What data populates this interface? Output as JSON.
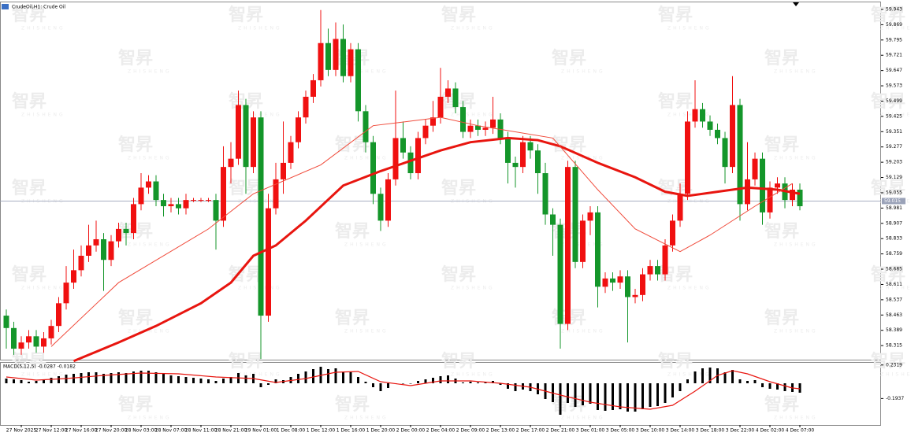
{
  "watermark": {
    "logo": "智昇",
    "sub": "ZHISHENG"
  },
  "chart_data": [
    {
      "type": "candlestick",
      "title": "CrudeOil,H1: Crude Oil",
      "categories": [
        null,
        null,
        "27 Nov 2025",
        null,
        null,
        null,
        "27 Nov 12:00",
        null,
        null,
        null,
        "27 Nov 16:00",
        null,
        null,
        null,
        "27 Nov 20:00",
        null,
        null,
        null,
        "28 Nov 03:00",
        null,
        null,
        null,
        "28 Nov 07:00",
        null,
        null,
        null,
        "28 Nov 11:00",
        null,
        null,
        null,
        "28 Nov 21:00",
        null,
        null,
        null,
        "29 Nov 01:00",
        null,
        null,
        null,
        "1 Dec 08:00",
        null,
        null,
        null,
        "1 Dec 12:00",
        null,
        null,
        null,
        "1 Dec 16:00",
        null,
        null,
        null,
        "1 Dec 20:00",
        null,
        null,
        null,
        "2 Dec 00:00",
        null,
        null,
        null,
        "2 Dec 04:00",
        null,
        null,
        null,
        "2 Dec 09:00",
        null,
        null,
        null,
        "2 Dec 13:00",
        null,
        null,
        null,
        "2 Dec 17:00",
        null,
        null,
        null,
        "2 Dec 21:00",
        null,
        null,
        null,
        "3 Dec 01:00",
        null,
        null,
        null,
        "3 Dec 05:00",
        null,
        null,
        null,
        "3 Dec 10:00",
        null,
        null,
        null,
        "3 Dec 14:00",
        null,
        null,
        null,
        "3 Dec 18:00",
        null,
        null,
        null,
        "3 Dec 22:00",
        null,
        null,
        null,
        "4 Dec 02:00",
        null,
        null,
        null,
        "4 Dec 07:00"
      ],
      "open": [
        58.46,
        58.4,
        58.3,
        58.33,
        58.36,
        58.31,
        58.35,
        58.41,
        58.52,
        58.62,
        58.68,
        58.75,
        58.8,
        58.83,
        58.73,
        58.82,
        58.88,
        58.86,
        59.0,
        59.08,
        59.11,
        59.02,
        58.99,
        59.0,
        58.98,
        59.02,
        59.02,
        59.02,
        59.02,
        58.92,
        59.18,
        59.22,
        59.48,
        59.18,
        59.42,
        58.46,
        58.98,
        59.12,
        59.2,
        59.3,
        59.42,
        59.52,
        59.6,
        59.78,
        59.65,
        59.8,
        59.62,
        59.75,
        59.45,
        59.3,
        59.05,
        58.92,
        59.12,
        59.32,
        59.25,
        59.15,
        59.32,
        59.38,
        59.42,
        59.52,
        59.56,
        59.47,
        59.35,
        59.38,
        59.36,
        59.37,
        59.41,
        59.32,
        59.2,
        59.18,
        59.3,
        59.26,
        59.15,
        58.95,
        58.9,
        58.42,
        59.18,
        58.72,
        58.92,
        58.96,
        58.6,
        58.64,
        58.62,
        58.65,
        58.55,
        58.56,
        58.66,
        58.7,
        58.66,
        58.8,
        58.92,
        59.05,
        59.4,
        59.46,
        59.4,
        59.36,
        59.32,
        59.18,
        59.48,
        59.0,
        59.12,
        59.22,
        58.96,
        59.08,
        59.1,
        59.02,
        59.07
      ],
      "high": [
        58.49,
        58.43,
        58.36,
        58.39,
        58.39,
        58.38,
        58.44,
        58.55,
        58.7,
        58.78,
        58.8,
        58.9,
        58.92,
        58.86,
        58.85,
        58.91,
        58.91,
        59.03,
        59.15,
        59.14,
        59.14,
        59.05,
        59.03,
        59.03,
        59.05,
        59.03,
        59.03,
        59.03,
        59.05,
        59.28,
        59.3,
        59.55,
        59.51,
        59.45,
        59.45,
        59.05,
        59.2,
        59.4,
        59.33,
        59.45,
        59.55,
        59.63,
        59.94,
        59.85,
        59.88,
        59.87,
        59.78,
        59.78,
        59.48,
        59.33,
        59.08,
        59.15,
        59.55,
        59.4,
        59.28,
        59.35,
        59.41,
        59.5,
        59.66,
        59.6,
        59.59,
        59.5,
        59.41,
        59.41,
        59.4,
        59.52,
        59.44,
        59.35,
        59.23,
        59.33,
        59.33,
        59.29,
        59.2,
        58.98,
        58.93,
        59.21,
        59.21,
        58.95,
        58.99,
        58.99,
        58.67,
        58.67,
        58.68,
        58.68,
        58.59,
        58.69,
        58.73,
        58.73,
        58.83,
        58.95,
        59.1,
        59.45,
        59.6,
        59.49,
        59.43,
        59.39,
        59.35,
        59.62,
        59.51,
        59.3,
        59.25,
        59.25,
        59.11,
        59.13,
        59.13,
        59.1,
        59.1
      ],
      "low": [
        58.3,
        58.27,
        58.27,
        58.3,
        58.28,
        58.28,
        58.32,
        58.38,
        58.49,
        58.59,
        58.65,
        58.72,
        58.77,
        58.58,
        58.7,
        58.79,
        58.8,
        58.83,
        58.97,
        59.05,
        58.99,
        58.94,
        58.96,
        58.95,
        58.95,
        59.01,
        59.01,
        59.01,
        58.78,
        58.89,
        59.1,
        59.19,
        59.05,
        59.15,
        58.25,
        58.43,
        58.95,
        59.05,
        59.17,
        59.27,
        59.39,
        59.49,
        59.57,
        59.62,
        59.62,
        59.59,
        59.59,
        59.4,
        59.25,
        59.0,
        58.87,
        58.89,
        59.09,
        59.22,
        59.12,
        59.12,
        59.29,
        59.35,
        59.39,
        59.49,
        59.44,
        59.32,
        59.32,
        59.33,
        59.33,
        59.34,
        59.29,
        59.1,
        59.08,
        59.15,
        59.22,
        59.05,
        58.9,
        58.75,
        58.3,
        58.39,
        58.69,
        58.69,
        58.85,
        58.5,
        58.57,
        58.58,
        58.59,
        58.33,
        58.52,
        58.53,
        58.63,
        58.63,
        58.63,
        58.77,
        58.89,
        59.02,
        59.37,
        59.37,
        59.33,
        59.29,
        59.1,
        59.15,
        58.92,
        58.97,
        59.09,
        58.9,
        58.93,
        59.05,
        58.98,
        58.99,
        58.97
      ],
      "close": [
        58.4,
        58.3,
        58.33,
        58.36,
        58.31,
        58.35,
        58.41,
        58.52,
        58.62,
        58.68,
        58.75,
        58.8,
        58.83,
        58.73,
        58.82,
        58.88,
        58.86,
        59.0,
        59.08,
        59.11,
        59.02,
        58.99,
        59.0,
        58.98,
        59.02,
        59.02,
        59.02,
        59.02,
        58.92,
        59.18,
        59.22,
        59.48,
        59.18,
        59.42,
        58.46,
        58.98,
        59.12,
        59.2,
        59.3,
        59.42,
        59.52,
        59.6,
        59.78,
        59.65,
        59.8,
        59.62,
        59.75,
        59.45,
        59.3,
        59.05,
        58.92,
        59.12,
        59.32,
        59.25,
        59.15,
        59.32,
        59.38,
        59.42,
        59.52,
        59.56,
        59.47,
        59.35,
        59.38,
        59.36,
        59.37,
        59.41,
        59.32,
        59.2,
        59.18,
        59.3,
        59.26,
        59.15,
        58.95,
        58.9,
        58.42,
        59.18,
        58.72,
        58.92,
        58.96,
        58.6,
        58.64,
        58.62,
        58.65,
        58.55,
        58.56,
        58.66,
        58.7,
        58.66,
        58.8,
        58.92,
        59.05,
        59.4,
        59.46,
        59.4,
        59.36,
        59.32,
        59.18,
        59.48,
        59.0,
        59.12,
        59.22,
        58.96,
        59.08,
        59.1,
        59.02,
        59.07,
        58.99
      ],
      "up_color": "#f01010",
      "down_color": "#14962a",
      "lines": [
        {
          "color": "#e8150f",
          "x": [
            9,
            15,
            20,
            26,
            30,
            33,
            36,
            40,
            45,
            50,
            54,
            58,
            62,
            67,
            71,
            74,
            79,
            84,
            88,
            91,
            95,
            99,
            103,
            106
          ],
          "values": [
            58.24,
            58.33,
            58.41,
            58.52,
            58.62,
            58.75,
            58.8,
            58.92,
            59.09,
            59.16,
            59.21,
            59.26,
            59.3,
            59.32,
            59.31,
            59.28,
            59.2,
            59.13,
            59.06,
            59.04,
            59.06,
            59.08,
            59.07,
            59.05
          ]
        },
        {
          "color": "#f04a3a",
          "x": [
            6,
            15,
            27,
            33,
            42,
            49,
            58,
            63,
            73,
            79,
            84,
            90,
            94,
            100,
            105
          ],
          "values": [
            58.31,
            58.62,
            58.88,
            59.05,
            59.19,
            59.38,
            59.42,
            59.38,
            59.32,
            59.07,
            58.88,
            58.77,
            58.85,
            58.99,
            59.1
          ]
        }
      ],
      "last_price": 59.015,
      "ylim": [
        58.243,
        59.981
      ],
      "yticks": [
        59.943,
        59.869,
        59.795,
        59.721,
        59.647,
        59.573,
        59.499,
        59.425,
        59.351,
        59.277,
        59.203,
        59.129,
        59.055,
        58.981,
        58.907,
        58.833,
        58.759,
        58.685,
        58.611,
        58.537,
        58.463,
        58.389,
        58.315
      ]
    },
    {
      "type": "macd",
      "title": "MACD(5,12,5) -0.0287 -0.0182",
      "histogram": [
        0.06,
        0.05,
        0.04,
        0.02,
        0.03,
        0.05,
        0.07,
        0.09,
        0.11,
        0.12,
        0.13,
        0.14,
        0.14,
        0.12,
        0.13,
        0.14,
        0.13,
        0.15,
        0.16,
        0.16,
        0.14,
        0.12,
        0.1,
        0.09,
        0.08,
        0.07,
        0.06,
        0.05,
        0.03,
        0.06,
        0.08,
        0.13,
        0.1,
        0.12,
        -0.05,
        -0.02,
        0.05,
        0.04,
        0.08,
        0.12,
        0.15,
        0.18,
        0.21,
        0.18,
        0.19,
        0.14,
        0.14,
        0.08,
        0.02,
        -0.05,
        -0.1,
        -0.06,
        0.0,
        0.0,
        0.0,
        0.03,
        0.05,
        0.07,
        0.09,
        0.1,
        0.06,
        0.01,
        0.02,
        0.01,
        0.02,
        0.03,
        -0.02,
        -0.07,
        -0.1,
        -0.08,
        -0.1,
        -0.14,
        -0.2,
        -0.24,
        -0.4,
        -0.25,
        -0.3,
        -0.28,
        -0.26,
        -0.34,
        -0.35,
        -0.34,
        -0.33,
        -0.36,
        -0.36,
        -0.33,
        -0.3,
        -0.29,
        -0.25,
        -0.18,
        -0.1,
        0.05,
        0.15,
        0.19,
        0.2,
        0.19,
        0.14,
        0.17,
        0.05,
        0.03,
        0.04,
        -0.05,
        -0.07,
        -0.08,
        -0.1,
        -0.11,
        -0.12
      ],
      "signal": {
        "color": "#e8150f",
        "x": [
          0,
          4,
          8,
          13,
          18,
          23,
          28,
          33,
          36,
          40,
          44,
          47,
          50,
          54,
          58,
          62,
          66,
          70,
          74,
          78,
          82,
          86,
          89,
          92,
          95,
          97,
          99,
          102,
          105,
          106
        ],
        "values": [
          0.08,
          0.04,
          0.06,
          0.1,
          0.13,
          0.12,
          0.08,
          0.06,
          0.01,
          0.06,
          0.14,
          0.15,
          0.02,
          -0.03,
          0.03,
          0.03,
          0.0,
          -0.05,
          -0.15,
          -0.24,
          -0.3,
          -0.33,
          -0.28,
          -0.1,
          0.1,
          0.16,
          0.12,
          0.02,
          -0.06,
          -0.07
        ]
      },
      "ylim": [
        -0.53,
        0.26
      ],
      "yticks": [
        0.2319,
        -0.1937
      ]
    }
  ]
}
